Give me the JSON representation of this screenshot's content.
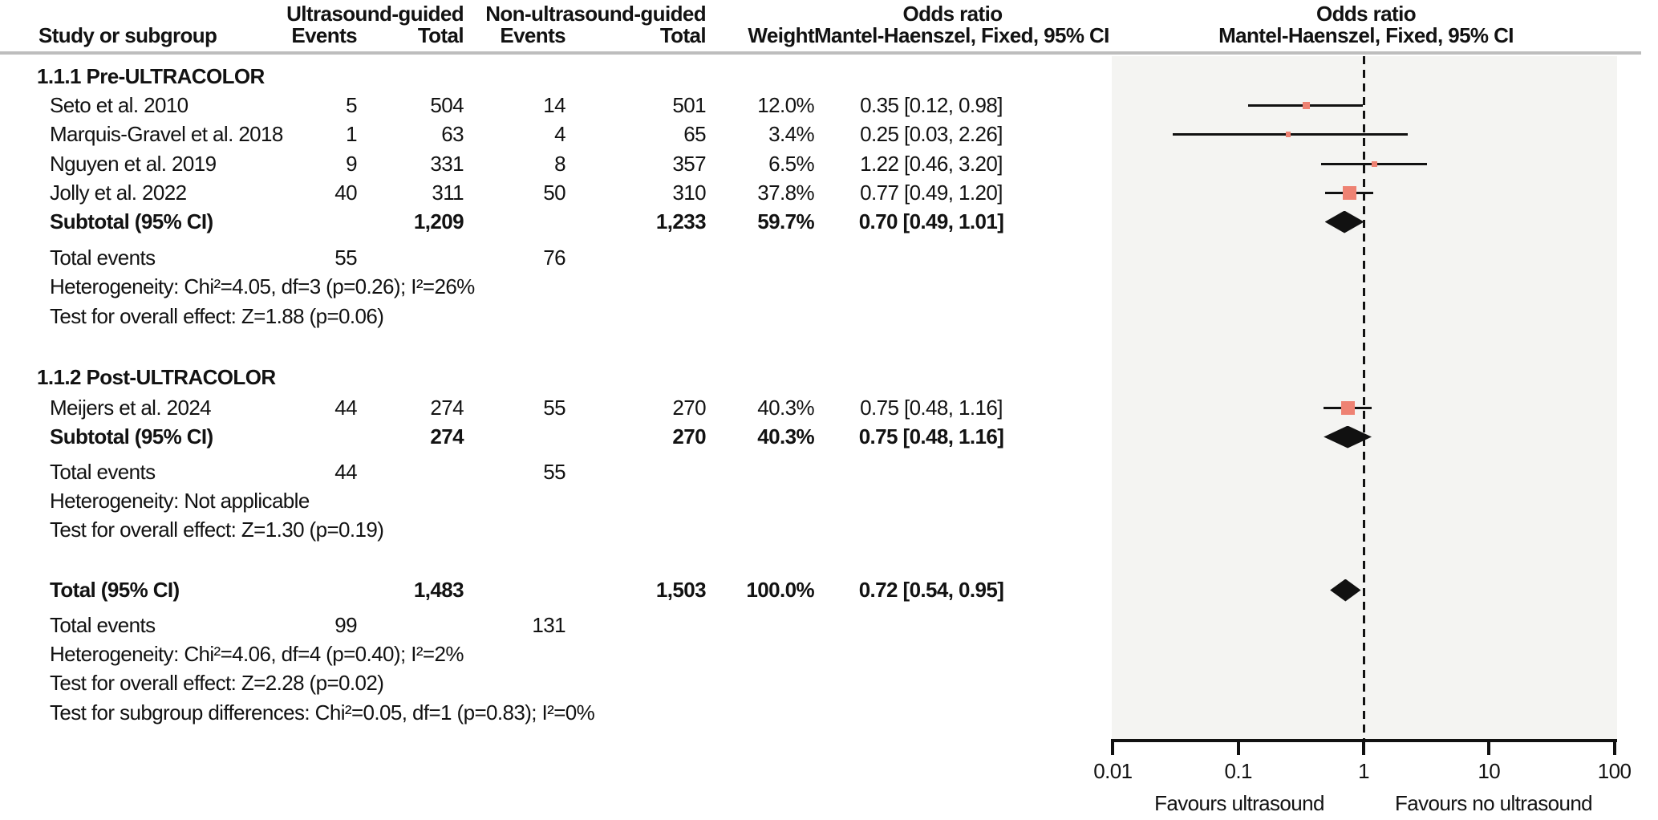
{
  "header": {
    "study_col": "Study or subgroup",
    "group1": "Ultrasound-guided",
    "group2": "Non-ultrasound-guided",
    "events": "Events",
    "total": "Total",
    "weight": "Weight",
    "or_line1": "Odds ratio",
    "or_line2": "Mantel-Haenszel, Fixed, 95% CI",
    "plot_line1": "Odds ratio",
    "plot_line2": "Mantel-Haenszel, Fixed, 95% CI"
  },
  "rows": {
    "sec1": {
      "label": "1.1.1 Pre-ULTRACOLOR"
    },
    "seto": {
      "study": "Seto et al. 2010",
      "e1": "5",
      "t1": "504",
      "e2": "14",
      "t2": "501",
      "w": "12.0%",
      "or": "0.35 [0.12, 0.98]"
    },
    "marquis": {
      "study": "Marquis-Gravel et al. 2018",
      "e1": "1",
      "t1": "63",
      "e2": "4",
      "t2": "65",
      "w": "3.4%",
      "or": "0.25 [0.03, 2.26]"
    },
    "nguyen": {
      "study": "Nguyen et al. 2019",
      "e1": "9",
      "t1": "331",
      "e2": "8",
      "t2": "357",
      "w": "6.5%",
      "or": "1.22 [0.46, 3.20]"
    },
    "jolly": {
      "study": "Jolly et al. 2022",
      "e1": "40",
      "t1": "311",
      "e2": "50",
      "t2": "310",
      "w": "37.8%",
      "or": "0.77 [0.49, 1.20]"
    },
    "sub1": {
      "study": "Subtotal (95% CI)",
      "t1": "1,209",
      "t2": "1,233",
      "w": "59.7%",
      "or": "0.70 [0.49, 1.01]"
    },
    "tev1": {
      "study": "Total events",
      "e1": "55",
      "e2": "76"
    },
    "het1": {
      "text": "Heterogeneity: Chi²=4.05, df=3 (p=0.26); I²=26%"
    },
    "ove1": {
      "text": "Test for overall effect: Z=1.88 (p=0.06)"
    },
    "sec2": {
      "label": "1.1.2 Post-ULTRACOLOR"
    },
    "meijers": {
      "study": "Meijers et al. 2024",
      "e1": "44",
      "t1": "274",
      "e2": "55",
      "t2": "270",
      "w": "40.3%",
      "or": "0.75 [0.48, 1.16]"
    },
    "sub2": {
      "study": "Subtotal (95% CI)",
      "t1": "274",
      "t2": "270",
      "w": "40.3%",
      "or": "0.75 [0.48, 1.16]"
    },
    "tev2": {
      "study": "Total events",
      "e1": "44",
      "e2": "55"
    },
    "het2": {
      "text": "Heterogeneity: Not applicable"
    },
    "ove2": {
      "text": "Test for overall effect: Z=1.30 (p=0.19)"
    },
    "total": {
      "study": "Total (95% CI)",
      "t1": "1,483",
      "t2": "1,503",
      "w": "100.0%",
      "or": "0.72 [0.54, 0.95]"
    },
    "tev3": {
      "study": "Total events",
      "e1": "99",
      "e2": "131"
    },
    "het3": {
      "text": "Heterogeneity: Chi²=4.06, df=4 (p=0.40); I²=2%"
    },
    "ove3": {
      "text": "Test for overall effect: Z=2.28 (p=0.02)"
    },
    "subgrp": {
      "text": "Test for subgroup differences: Chi²=0.05, df=1 (p=0.83); I²=0%"
    }
  },
  "axis": {
    "ticks": [
      "0.01",
      "0.1",
      "1",
      "10",
      "100"
    ],
    "left_label": "Favours ultrasound",
    "right_label": "Favours no ultrasound"
  },
  "chart_data": {
    "type": "scatter",
    "subtype": "forest-plot",
    "effect_measure": "Odds ratio, Mantel-Haenszel, Fixed, 95% CI",
    "x_scale": "log",
    "xlim": [
      0.01,
      100
    ],
    "x_ticks": [
      0.01,
      0.1,
      1,
      10,
      100
    ],
    "reference_line": 1,
    "favours_left": "Favours ultrasound",
    "favours_right": "Favours no ultrasound",
    "marker_color": "#ee8273",
    "summary_color": "#111111",
    "plot_bg": "#f4f4f2",
    "groups": [
      {
        "label": "1.1.1 Pre-ULTRACOLOR",
        "studies": [
          {
            "study": "Seto et al. 2010",
            "events_us": 5,
            "total_us": 504,
            "events_nonus": 14,
            "total_nonus": 501,
            "weight_pct": 12.0,
            "or": 0.35,
            "ci_low": 0.12,
            "ci_high": 0.98
          },
          {
            "study": "Marquis-Gravel et al. 2018",
            "events_us": 1,
            "total_us": 63,
            "events_nonus": 4,
            "total_nonus": 65,
            "weight_pct": 3.4,
            "or": 0.25,
            "ci_low": 0.03,
            "ci_high": 2.26
          },
          {
            "study": "Nguyen et al. 2019",
            "events_us": 9,
            "total_us": 331,
            "events_nonus": 8,
            "total_nonus": 357,
            "weight_pct": 6.5,
            "or": 1.22,
            "ci_low": 0.46,
            "ci_high": 3.2
          },
          {
            "study": "Jolly et al. 2022",
            "events_us": 40,
            "total_us": 311,
            "events_nonus": 50,
            "total_nonus": 310,
            "weight_pct": 37.8,
            "or": 0.77,
            "ci_low": 0.49,
            "ci_high": 1.2
          }
        ],
        "subtotal": {
          "total_us": 1209,
          "total_nonus": 1233,
          "weight_pct": 59.7,
          "or": 0.7,
          "ci_low": 0.49,
          "ci_high": 1.01
        },
        "total_events_us": 55,
        "total_events_nonus": 76,
        "heterogeneity": "Chi²=4.05, df=3 (p=0.26); I²=26%",
        "overall_effect": "Z=1.88 (p=0.06)"
      },
      {
        "label": "1.1.2 Post-ULTRACOLOR",
        "studies": [
          {
            "study": "Meijers et al. 2024",
            "events_us": 44,
            "total_us": 274,
            "events_nonus": 55,
            "total_nonus": 270,
            "weight_pct": 40.3,
            "or": 0.75,
            "ci_low": 0.48,
            "ci_high": 1.16
          }
        ],
        "subtotal": {
          "total_us": 274,
          "total_nonus": 270,
          "weight_pct": 40.3,
          "or": 0.75,
          "ci_low": 0.48,
          "ci_high": 1.16
        },
        "total_events_us": 44,
        "total_events_nonus": 55,
        "heterogeneity": "Not applicable",
        "overall_effect": "Z=1.30 (p=0.19)"
      }
    ],
    "total": {
      "total_us": 1483,
      "total_nonus": 1503,
      "weight_pct": 100.0,
      "or": 0.72,
      "ci_low": 0.54,
      "ci_high": 0.95,
      "total_events_us": 99,
      "total_events_nonus": 131,
      "heterogeneity": "Chi²=4.06, df=4 (p=0.40); I²=2%",
      "overall_effect": "Z=2.28 (p=0.02)",
      "subgroup_differences": "Chi²=0.05, df=1 (p=0.83); I²=0%"
    }
  }
}
